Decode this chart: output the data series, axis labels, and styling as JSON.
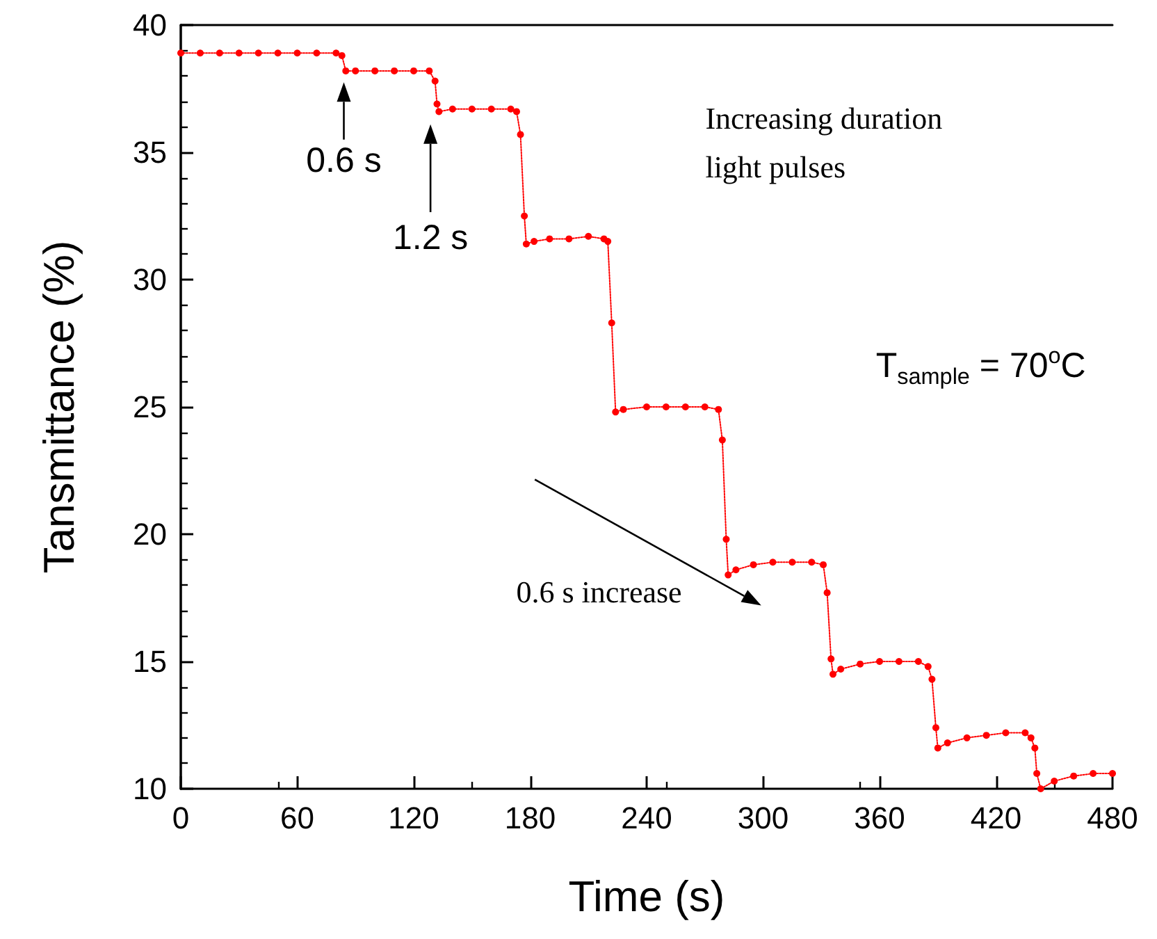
{
  "chart_data": {
    "type": "line",
    "xlabel": "Time (s)",
    "ylabel": "Tansmittance (%)",
    "xlim": [
      0,
      480
    ],
    "xticks": [
      0,
      60,
      120,
      180,
      240,
      300,
      360,
      420,
      480
    ],
    "ylim": [
      10,
      40
    ],
    "yticks": [
      10,
      15,
      20,
      25,
      30,
      35,
      40
    ],
    "grid": false,
    "marker": "circle",
    "line_style": "dotted",
    "series": [
      {
        "color": "#ff0000",
        "x": [
          0,
          10,
          20,
          30,
          40,
          50,
          60,
          70,
          80,
          83,
          85,
          90,
          100,
          110,
          120,
          128,
          131,
          132,
          133,
          140,
          150,
          160,
          170,
          173,
          175,
          177,
          178,
          182,
          190,
          200,
          210,
          218,
          220,
          222,
          224,
          228,
          240,
          250,
          260,
          270,
          277,
          279,
          281,
          282,
          286,
          295,
          305,
          315,
          325,
          331,
          333,
          335,
          336,
          340,
          350,
          360,
          370,
          380,
          385,
          387,
          389,
          390,
          395,
          405,
          415,
          425,
          435,
          438,
          440,
          441,
          443,
          450,
          460,
          470,
          480
        ],
        "values": [
          38.9,
          38.9,
          38.9,
          38.9,
          38.9,
          38.9,
          38.9,
          38.9,
          38.9,
          38.8,
          38.2,
          38.2,
          38.2,
          38.2,
          38.2,
          38.2,
          37.8,
          36.9,
          36.6,
          36.7,
          36.7,
          36.7,
          36.7,
          36.6,
          35.7,
          32.5,
          31.4,
          31.5,
          31.6,
          31.6,
          31.7,
          31.6,
          31.5,
          28.3,
          24.8,
          24.9,
          25.0,
          25.0,
          25.0,
          25.0,
          24.9,
          23.7,
          19.8,
          18.4,
          18.6,
          18.8,
          18.9,
          18.9,
          18.9,
          18.8,
          17.7,
          15.1,
          14.5,
          14.7,
          14.9,
          15.0,
          15.0,
          15.0,
          14.8,
          14.3,
          12.4,
          11.6,
          11.8,
          12.0,
          12.1,
          12.2,
          12.2,
          12.0,
          11.6,
          10.6,
          10.0,
          10.3,
          10.5,
          10.6,
          10.6
        ]
      }
    ],
    "annotations": [
      "0.6 s",
      "1.2 s",
      "Increasing duration light pulses",
      "T$_{sample}$ = 70$^{o}$C",
      "0.6 s increase"
    ]
  }
}
